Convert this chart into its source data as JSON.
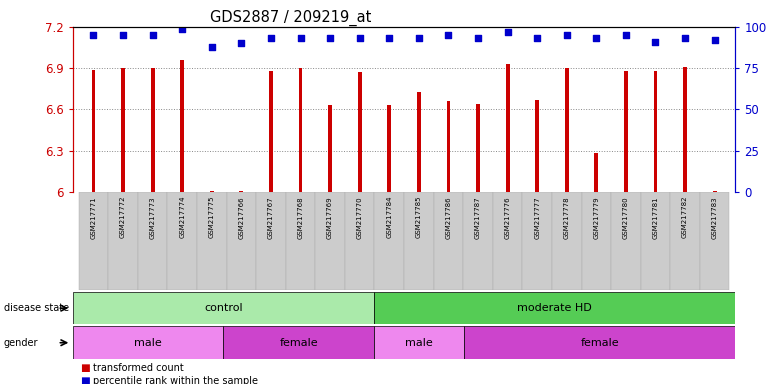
{
  "title": "GDS2887 / 209219_at",
  "samples": [
    "GSM217771",
    "GSM217772",
    "GSM217773",
    "GSM217774",
    "GSM217775",
    "GSM217766",
    "GSM217767",
    "GSM217768",
    "GSM217769",
    "GSM217770",
    "GSM217784",
    "GSM217785",
    "GSM217786",
    "GSM217787",
    "GSM217776",
    "GSM217777",
    "GSM217778",
    "GSM217779",
    "GSM217780",
    "GSM217781",
    "GSM217782",
    "GSM217783"
  ],
  "bar_values": [
    6.89,
    6.9,
    6.9,
    6.96,
    6.01,
    6.01,
    6.88,
    6.9,
    6.63,
    6.87,
    6.63,
    6.73,
    6.66,
    6.64,
    6.93,
    6.67,
    6.9,
    6.28,
    6.88,
    6.88,
    6.91,
    6.01
  ],
  "percentile_values_pct": [
    95,
    95,
    95,
    99,
    88,
    90,
    93,
    93,
    93,
    93,
    93,
    93,
    95,
    93,
    97,
    93,
    95,
    93,
    95,
    91,
    93,
    92
  ],
  "bar_color": "#cc0000",
  "percentile_color": "#0000cc",
  "ylim": [
    6.0,
    7.2
  ],
  "yticks": [
    6.0,
    6.3,
    6.6,
    6.9,
    7.2
  ],
  "ytick_labels": [
    "6",
    "6.3",
    "6.6",
    "6.9",
    "7.2"
  ],
  "y2ticks": [
    0,
    25,
    50,
    75,
    100
  ],
  "y2tick_labels": [
    "0",
    "25",
    "50",
    "75",
    "100%"
  ],
  "disease_state_groups": [
    {
      "label": "control",
      "start": 0,
      "end": 10,
      "color": "#aaeaaa"
    },
    {
      "label": "moderate HD",
      "start": 10,
      "end": 22,
      "color": "#55cc55"
    }
  ],
  "gender_groups": [
    {
      "label": "male",
      "start": 0,
      "end": 5,
      "color": "#ee88ee"
    },
    {
      "label": "female",
      "start": 5,
      "end": 10,
      "color": "#cc44cc"
    },
    {
      "label": "male",
      "start": 10,
      "end": 13,
      "color": "#ee88ee"
    },
    {
      "label": "female",
      "start": 13,
      "end": 22,
      "color": "#cc44cc"
    }
  ],
  "legend_items": [
    {
      "label": "transformed count",
      "color": "#cc0000"
    },
    {
      "label": "percentile rank within the sample",
      "color": "#0000cc"
    }
  ]
}
